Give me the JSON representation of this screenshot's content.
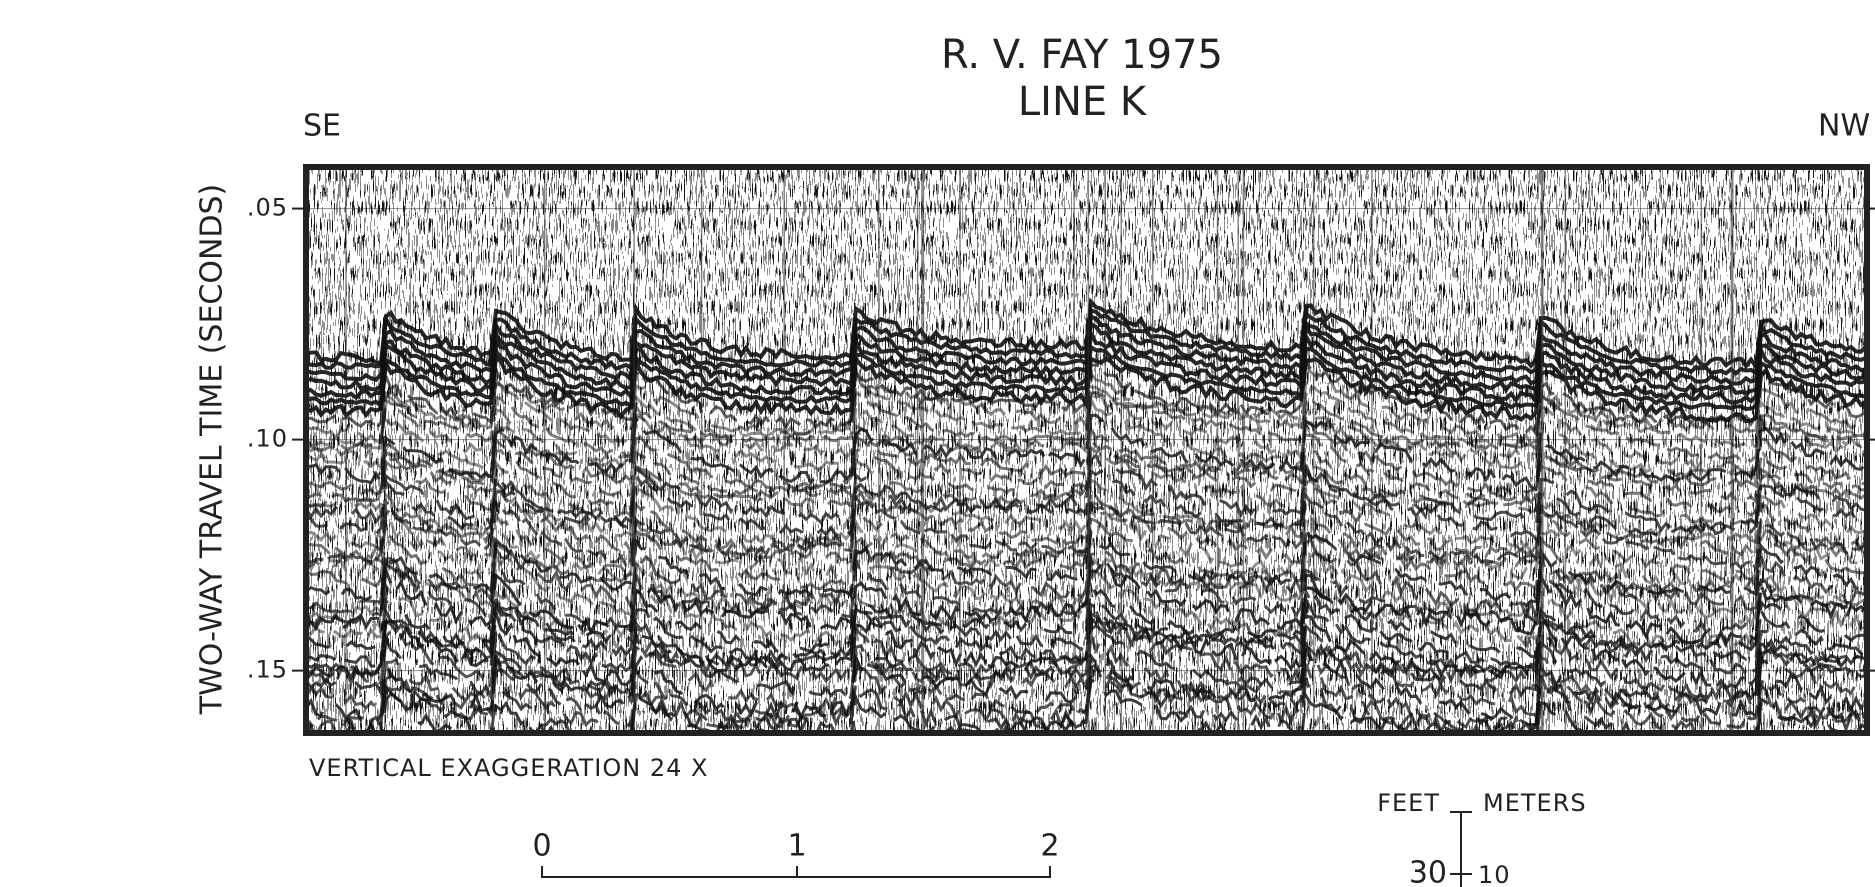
{
  "chart_data": {
    "type": "seismic-profile",
    "title": "R. V. FAY 1975",
    "subtitle": "LINE K",
    "left_label": "SE",
    "right_label": "NW",
    "y_label": "TWO-WAY TRAVEL TIME (SECONDS)",
    "ylim": [
      0.041,
      0.1635
    ],
    "yticks": [
      {
        "value": 0.05,
        "label": ".05"
      },
      {
        "value": 0.1,
        "label": ".10"
      },
      {
        "value": 0.15,
        "label": ".15"
      }
    ],
    "note": "VERTICAL EXAGGERATION 24 X",
    "distance_scale": {
      "labels": [
        "0",
        "1",
        "2"
      ]
    },
    "vertical_scale": {
      "left_unit": "FEET",
      "right_unit": "METERS",
      "left_label": "30",
      "right_label": "10"
    }
  }
}
